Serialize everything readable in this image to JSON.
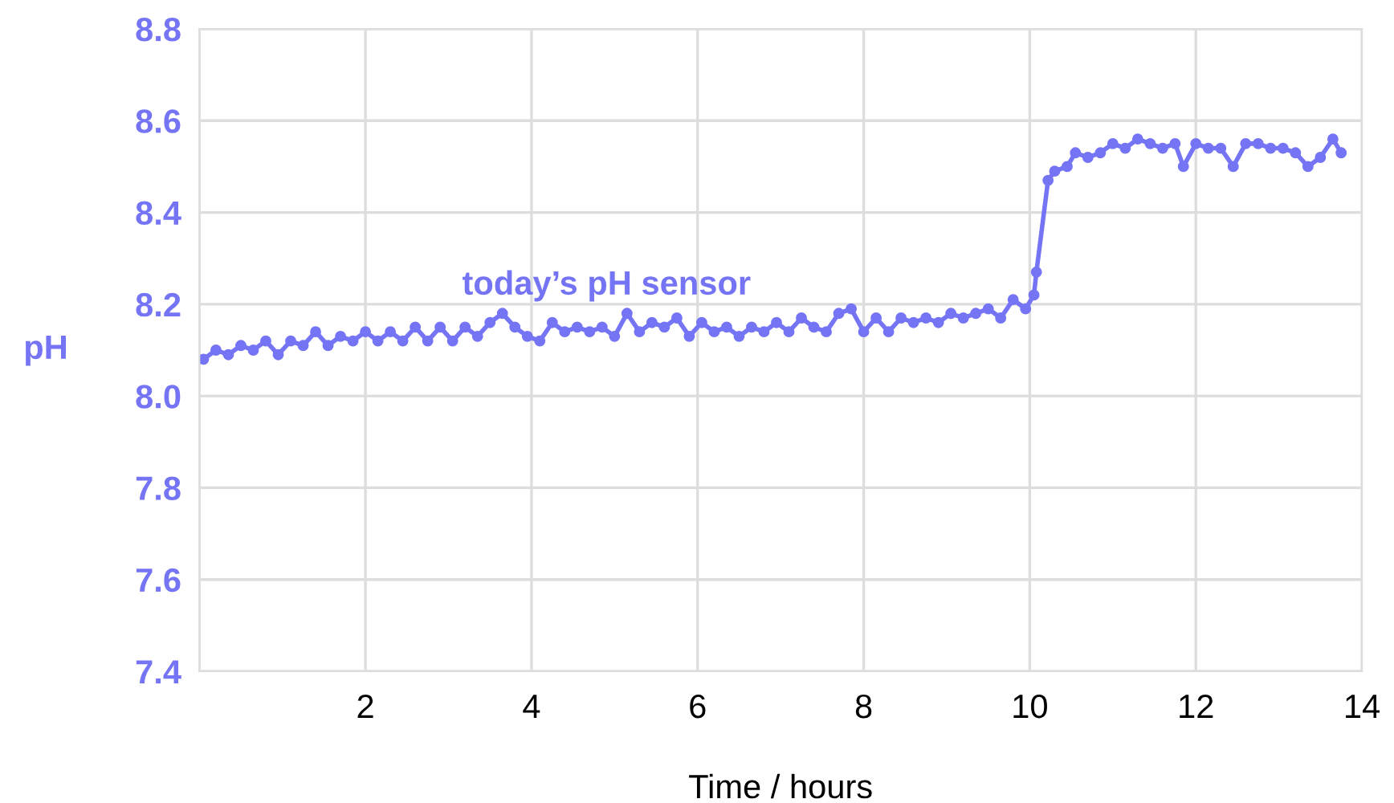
{
  "chart_data": {
    "type": "line",
    "xlabel": "Time / hours",
    "ylabel": "pH",
    "xlim": [
      0,
      14
    ],
    "ylim": [
      7.4,
      8.8
    ],
    "xticks": [
      {
        "value": 0,
        "label": null
      },
      2,
      4,
      6,
      8,
      10,
      12,
      14
    ],
    "yticks": [
      7.4,
      7.6,
      7.8,
      {
        "value": 8.0,
        "label": "8.0"
      },
      8.2,
      8.4,
      8.6,
      8.8
    ],
    "grid": true,
    "marker": "circle",
    "line_style": "solid",
    "legend": false,
    "series": [
      {
        "name": "today’s pH sensor",
        "color": "#7474f4",
        "x": [
          0.05,
          0.2,
          0.35,
          0.5,
          0.65,
          0.8,
          0.95,
          1.1,
          1.25,
          1.4,
          1.55,
          1.7,
          1.85,
          2.0,
          2.15,
          2.3,
          2.45,
          2.6,
          2.75,
          2.9,
          3.05,
          3.2,
          3.35,
          3.5,
          3.65,
          3.8,
          3.95,
          4.1,
          4.25,
          4.4,
          4.55,
          4.7,
          4.85,
          5.0,
          5.15,
          5.3,
          5.45,
          5.6,
          5.75,
          5.9,
          6.05,
          6.2,
          6.35,
          6.5,
          6.65,
          6.8,
          6.95,
          7.1,
          7.25,
          7.4,
          7.55,
          7.7,
          7.85,
          8.0,
          8.15,
          8.3,
          8.45,
          8.6,
          8.75,
          8.9,
          9.05,
          9.2,
          9.35,
          9.5,
          9.65,
          9.8,
          9.95,
          10.05,
          10.08,
          10.22,
          10.3,
          10.45,
          10.55,
          10.7,
          10.85,
          11.0,
          11.15,
          11.3,
          11.45,
          11.6,
          11.75,
          11.85,
          12.0,
          12.15,
          12.3,
          12.45,
          12.6,
          12.75,
          12.9,
          13.05,
          13.2,
          13.35,
          13.5,
          13.65,
          13.75
        ],
        "values": [
          8.08,
          8.1,
          8.09,
          8.11,
          8.1,
          8.12,
          8.09,
          8.12,
          8.11,
          8.14,
          8.11,
          8.13,
          8.12,
          8.14,
          8.12,
          8.14,
          8.12,
          8.15,
          8.12,
          8.15,
          8.12,
          8.15,
          8.13,
          8.16,
          8.18,
          8.15,
          8.13,
          8.12,
          8.16,
          8.14,
          8.15,
          8.14,
          8.15,
          8.13,
          8.18,
          8.14,
          8.16,
          8.15,
          8.17,
          8.13,
          8.16,
          8.14,
          8.15,
          8.13,
          8.15,
          8.14,
          8.16,
          8.14,
          8.17,
          8.15,
          8.14,
          8.18,
          8.19,
          8.14,
          8.17,
          8.14,
          8.17,
          8.16,
          8.17,
          8.16,
          8.18,
          8.17,
          8.18,
          8.19,
          8.17,
          8.21,
          8.19,
          8.22,
          8.27,
          8.47,
          8.49,
          8.5,
          8.53,
          8.52,
          8.53,
          8.55,
          8.54,
          8.56,
          8.55,
          8.54,
          8.55,
          8.5,
          8.55,
          8.54,
          8.54,
          8.5,
          8.55,
          8.55,
          8.54,
          8.54,
          8.53,
          8.5,
          8.52,
          8.56,
          8.53
        ]
      }
    ]
  }
}
